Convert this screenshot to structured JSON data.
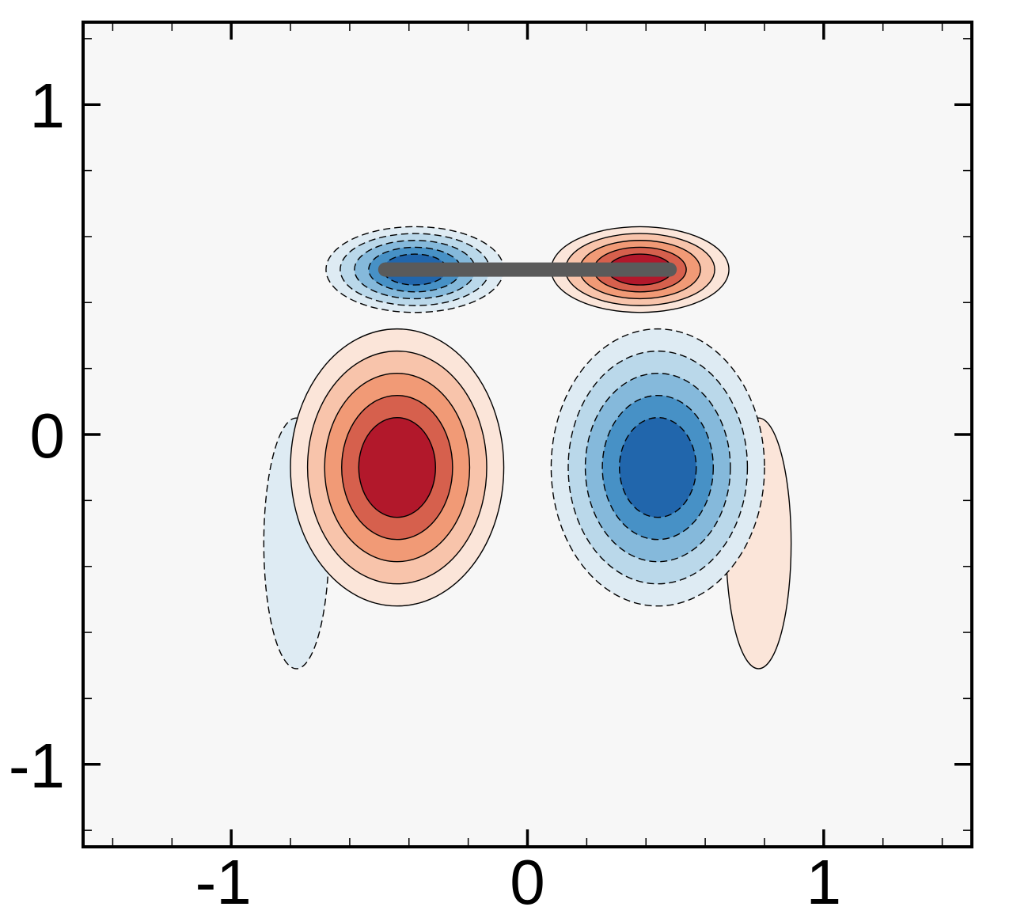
{
  "chart_data": {
    "type": "contour",
    "title": "",
    "xlabel": "",
    "ylabel": "",
    "xlim": [
      -1.5,
      1.5
    ],
    "ylim": [
      -1.25,
      1.25
    ],
    "x_ticks": [
      {
        "value": -1,
        "label": "-1"
      },
      {
        "value": 0,
        "label": "0"
      },
      {
        "value": 1,
        "label": "1"
      }
    ],
    "y_ticks": [
      {
        "value": 1,
        "label": "1"
      },
      {
        "value": 0,
        "label": "0"
      },
      {
        "value": -1,
        "label": "-1"
      }
    ],
    "minor_tick_step": 0.2,
    "background_color": "#f7f7f7",
    "colors": {
      "pos": [
        "#fbe5d9",
        "#f8c4ab",
        "#f19a76",
        "#d6604d",
        "#b2182b"
      ],
      "neg": [
        "#deebf3",
        "#bad8ea",
        "#85b9db",
        "#4791c6",
        "#2166ac"
      ]
    },
    "plate": {
      "x": [
        -0.48,
        0.48
      ],
      "y": 0.5,
      "color": "#5a5a5a"
    },
    "regions": [
      {
        "sign": "neg",
        "cx": -0.78,
        "cy": -0.33,
        "rx": 0.11,
        "ry": 0.38,
        "levels": 1
      },
      {
        "sign": "pos",
        "cx": 0.78,
        "cy": -0.33,
        "rx": 0.11,
        "ry": 0.38,
        "levels": 1
      },
      {
        "sign": "pos",
        "cx": -0.44,
        "cy": -0.1,
        "rx": 0.36,
        "ry": 0.42,
        "levels": 5
      },
      {
        "sign": "neg",
        "cx": 0.44,
        "cy": -0.1,
        "rx": 0.36,
        "ry": 0.42,
        "levels": 5
      },
      {
        "sign": "neg",
        "cx": -0.38,
        "cy": 0.5,
        "rx": 0.3,
        "ry": 0.13,
        "levels": 5
      },
      {
        "sign": "pos",
        "cx": 0.38,
        "cy": 0.5,
        "rx": 0.3,
        "ry": 0.13,
        "levels": 5
      }
    ]
  }
}
